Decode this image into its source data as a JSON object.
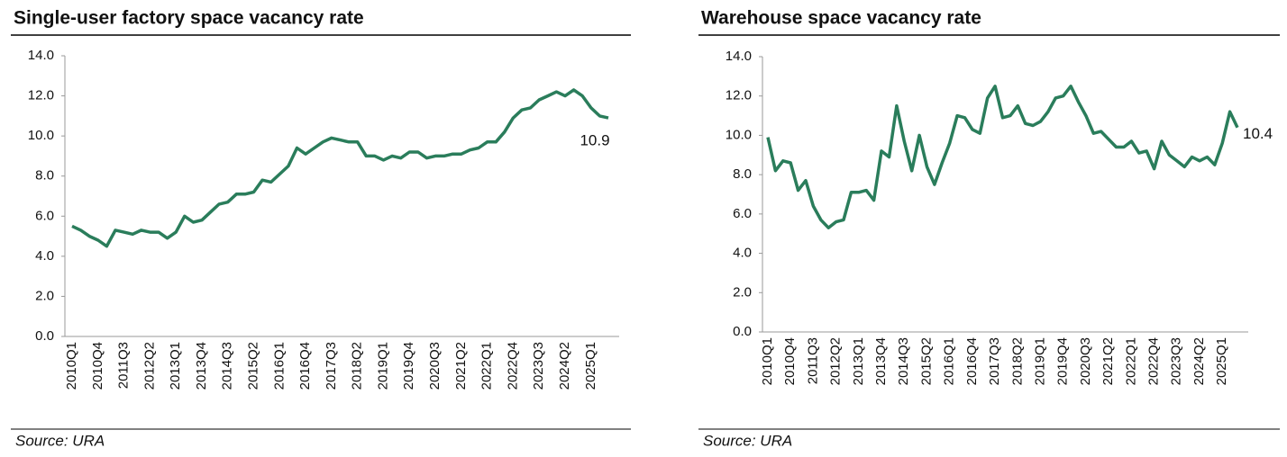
{
  "chart_data": [
    {
      "type": "line",
      "title": "Single-user factory space vacancy rate",
      "source": "Source: URA",
      "color": "#2a7d5b",
      "categories": [
        "2010Q1",
        null,
        null,
        "2010Q4",
        null,
        null,
        "2011Q3",
        null,
        null,
        "2012Q2",
        null,
        null,
        "2013Q1",
        null,
        null,
        "2013Q4",
        null,
        null,
        "2014Q3",
        null,
        null,
        "2015Q2",
        null,
        null,
        "2016Q1",
        null,
        null,
        "2016Q4",
        null,
        null,
        "2017Q3",
        null,
        null,
        "2018Q2",
        null,
        null,
        "2019Q1",
        null,
        null,
        "2019Q4",
        null,
        null,
        "2020Q3",
        null,
        null,
        "2021Q2",
        null,
        null,
        "2022Q1",
        null,
        null,
        "2022Q4",
        null,
        null,
        "2023Q3",
        null,
        null,
        "2024Q2",
        null,
        null,
        "2025Q1",
        null,
        null
      ],
      "values": [
        5.5,
        5.3,
        5.0,
        4.8,
        4.5,
        5.3,
        5.2,
        5.1,
        5.3,
        5.2,
        5.2,
        4.9,
        5.2,
        6.0,
        5.7,
        5.8,
        6.2,
        6.6,
        6.7,
        7.1,
        7.1,
        7.2,
        7.8,
        7.7,
        8.1,
        8.5,
        9.4,
        9.1,
        9.4,
        9.7,
        9.9,
        9.8,
        9.7,
        9.7,
        9.0,
        9.0,
        8.8,
        9.0,
        8.9,
        9.2,
        9.2,
        8.9,
        9.0,
        9.0,
        9.1,
        9.1,
        9.3,
        9.4,
        9.7,
        9.7,
        10.2,
        10.9,
        11.3,
        11.4,
        11.8,
        12.0,
        12.2,
        12.0,
        12.3,
        12.0,
        11.4,
        11.0,
        10.9
      ],
      "ylim": [
        0,
        14
      ],
      "yticks": [
        {
          "value": 0,
          "label": "0.0"
        },
        {
          "value": 2,
          "label": "2.0"
        },
        {
          "value": 4,
          "label": "4.0"
        },
        {
          "value": 6,
          "label": "6.0"
        },
        {
          "value": 8,
          "label": "8.0"
        },
        {
          "value": 10,
          "label": "10.0"
        },
        {
          "value": 12,
          "label": "12.0"
        },
        {
          "value": 14,
          "label": "14.0"
        }
      ]
    },
    {
      "type": "line",
      "title": "Warehouse space vacancy rate",
      "source": "Source: URA",
      "color": "#2a7d5b",
      "categories": [
        "2010Q1",
        null,
        null,
        "2010Q4",
        null,
        null,
        "2011Q3",
        null,
        null,
        "2012Q2",
        null,
        null,
        "2013Q1",
        null,
        null,
        "2013Q4",
        null,
        null,
        "2014Q3",
        null,
        null,
        "2015Q2",
        null,
        null,
        "2016Q1",
        null,
        null,
        "2016Q4",
        null,
        null,
        "2017Q3",
        null,
        null,
        "2018Q2",
        null,
        null,
        "2019Q1",
        null,
        null,
        "2019Q4",
        null,
        null,
        "2020Q3",
        null,
        null,
        "2021Q2",
        null,
        null,
        "2022Q1",
        null,
        null,
        "2022Q4",
        null,
        null,
        "2023Q3",
        null,
        null,
        "2024Q2",
        null,
        null,
        "2025Q1",
        null,
        null
      ],
      "values": [
        9.9,
        8.2,
        8.7,
        8.6,
        7.2,
        7.7,
        6.4,
        5.7,
        5.3,
        5.6,
        5.7,
        7.1,
        7.1,
        7.2,
        6.7,
        9.2,
        8.9,
        11.5,
        9.7,
        8.2,
        10.0,
        8.4,
        7.5,
        8.6,
        9.6,
        11.0,
        10.9,
        10.3,
        10.1,
        11.9,
        12.5,
        10.9,
        11.0,
        11.5,
        10.6,
        10.5,
        10.7,
        11.2,
        11.9,
        12.0,
        12.5,
        11.7,
        11.0,
        10.1,
        10.2,
        9.8,
        9.4,
        9.4,
        9.7,
        9.1,
        9.2,
        8.3,
        9.7,
        9.0,
        8.7,
        8.4,
        8.9,
        8.7,
        8.9,
        8.5,
        9.6,
        11.2,
        10.4
      ],
      "ylim": [
        0,
        14
      ],
      "yticks": [
        {
          "value": 0,
          "label": "0.0"
        },
        {
          "value": 2,
          "label": "2.0"
        },
        {
          "value": 4,
          "label": "4.0"
        },
        {
          "value": 6,
          "label": "6.0"
        },
        {
          "value": 8,
          "label": "8.0"
        },
        {
          "value": 10,
          "label": "10.0"
        },
        {
          "value": 12,
          "label": "12.0"
        },
        {
          "value": 14,
          "label": "14.0"
        }
      ]
    }
  ]
}
